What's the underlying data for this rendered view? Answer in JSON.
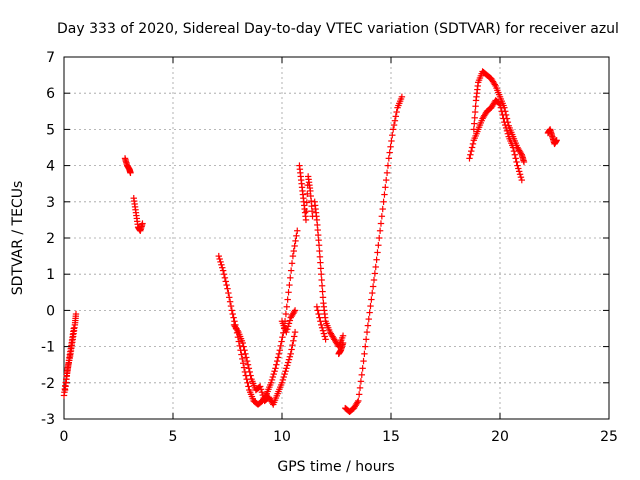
{
  "chart_data": {
    "type": "scatter",
    "title": "Day 333 of 2020, Sidereal Day-to-day VTEC variation (SDTVAR) for receiver azul",
    "xlabel": "GPS time / hours",
    "ylabel": "SDTVAR / TECUs",
    "xlim": [
      0,
      25
    ],
    "ylim": [
      -3,
      7
    ],
    "xticks": [
      "0",
      "5",
      "10",
      "15",
      "20",
      "25"
    ],
    "yticks": [
      "-3",
      "-2",
      "-1",
      "0",
      "1",
      "2",
      "3",
      "4",
      "5",
      "6",
      "7"
    ],
    "grid": true,
    "marker": "+",
    "series": [
      {
        "name": "SDTVAR",
        "color": "#ff0000",
        "segments": [
          {
            "x": [
              0.0,
              0.1,
              0.2,
              0.3,
              0.4,
              0.5,
              0.55
            ],
            "y": [
              -2.35,
              -1.9,
              -1.5,
              -1.2,
              -0.8,
              -0.4,
              -0.1
            ]
          },
          {
            "x": [
              0.05,
              0.15,
              0.25,
              0.35,
              0.45
            ],
            "y": [
              -2.2,
              -1.7,
              -1.3,
              -0.9,
              -0.5
            ]
          },
          {
            "x": [
              2.8,
              2.9,
              3.0,
              3.05
            ],
            "y": [
              4.2,
              4.0,
              3.9,
              3.8
            ]
          },
          {
            "x": [
              3.2,
              3.3,
              3.4,
              3.5,
              3.6
            ],
            "y": [
              3.1,
              2.7,
              2.3,
              2.2,
              2.4
            ]
          },
          {
            "x": [
              7.1,
              7.3,
              7.5,
              7.7,
              7.9,
              8.1,
              8.3,
              8.5,
              8.7,
              8.9,
              9.1,
              9.3,
              9.5,
              9.7,
              9.9,
              10.1,
              10.3,
              10.5,
              10.7
            ],
            "y": [
              1.5,
              1.1,
              0.6,
              0.0,
              -0.5,
              -1.1,
              -1.7,
              -2.2,
              -2.5,
              -2.6,
              -2.5,
              -2.3,
              -2.0,
              -1.6,
              -1.1,
              -0.5,
              0.5,
              1.5,
              2.2
            ]
          },
          {
            "x": [
              7.8,
              8.0,
              8.2,
              8.4,
              8.6,
              8.8,
              9.0,
              9.2,
              9.4,
              9.6,
              9.8,
              10.0,
              10.2,
              10.4,
              10.6
            ],
            "y": [
              -0.4,
              -0.6,
              -0.9,
              -1.4,
              -1.9,
              -2.2,
              -2.1,
              -2.5,
              -2.4,
              -2.6,
              -2.3,
              -2.0,
              -1.6,
              -1.2,
              -0.6
            ]
          },
          {
            "x": [
              10.0,
              10.2,
              10.4,
              10.6
            ],
            "y": [
              -0.3,
              -0.6,
              -0.2,
              0.0
            ]
          },
          {
            "x": [
              10.8,
              10.9,
              11.0,
              11.1,
              11.2,
              11.3,
              11.4
            ],
            "y": [
              4.0,
              3.5,
              3.0,
              2.5,
              3.7,
              3.3,
              2.6
            ]
          },
          {
            "x": [
              11.5,
              11.6,
              11.7,
              11.8,
              11.9,
              12.0,
              12.2,
              12.4,
              12.6,
              12.8
            ],
            "y": [
              3.0,
              2.5,
              1.8,
              1.0,
              0.2,
              -0.3,
              -0.6,
              -0.8,
              -1.0,
              -0.7
            ]
          },
          {
            "x": [
              11.6,
              11.8,
              12.0
            ],
            "y": [
              0.1,
              -0.4,
              -0.8
            ]
          },
          {
            "x": [
              12.6,
              12.7,
              12.8
            ],
            "y": [
              -1.2,
              -1.1,
              -0.9
            ]
          },
          {
            "x": [
              12.9,
              13.1,
              13.3,
              13.5,
              13.7,
              13.9,
              14.1,
              14.3,
              14.5,
              14.7,
              14.9,
              15.1,
              15.3,
              15.5
            ],
            "y": [
              -2.7,
              -2.8,
              -2.7,
              -2.5,
              -1.6,
              -0.6,
              0.3,
              1.2,
              2.2,
              3.2,
              4.2,
              5.0,
              5.6,
              5.9
            ]
          },
          {
            "x": [
              18.6,
              18.8,
              19.0,
              19.2,
              19.4,
              19.6,
              19.8,
              20.0,
              20.2,
              20.4,
              20.6,
              20.8,
              21.0
            ],
            "y": [
              4.2,
              4.7,
              5.0,
              5.3,
              5.5,
              5.6,
              5.8,
              5.7,
              5.2,
              4.8,
              4.5,
              4.0,
              3.6
            ]
          },
          {
            "x": [
              18.8,
              18.9,
              19.0,
              19.2,
              19.4,
              19.6,
              19.8,
              20.0,
              20.2,
              20.4,
              20.6,
              20.8,
              21.0,
              21.1
            ],
            "y": [
              5.0,
              5.8,
              6.3,
              6.6,
              6.5,
              6.4,
              6.2,
              5.9,
              5.6,
              5.1,
              4.8,
              4.5,
              4.3,
              4.1
            ]
          },
          {
            "x": [
              22.2,
              22.3,
              22.4,
              22.5,
              22.6
            ],
            "y": [
              4.9,
              5.0,
              4.8,
              4.6,
              4.7
            ]
          }
        ]
      }
    ]
  }
}
